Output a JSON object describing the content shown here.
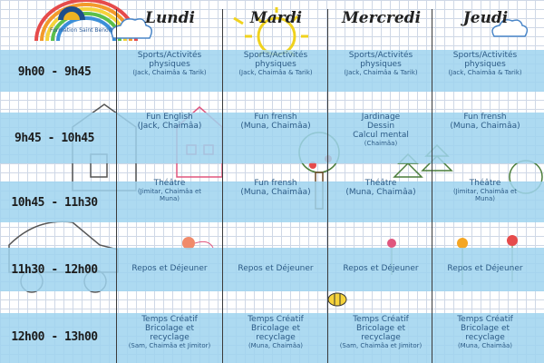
{
  "org": {
    "name": "Formation Saint Benoit"
  },
  "days": [
    "Lundi",
    "Mardi",
    "Mercredi",
    "Jeudi"
  ],
  "rows": [
    {
      "time": "9h00 - 9h45",
      "cells": [
        {
          "lines": [
            "Sports/Activités",
            "physiques"
          ],
          "small": [
            "(Jack, Chaimâa & Tarik)"
          ]
        },
        {
          "lines": [
            "Sports/Activités",
            "physiques"
          ],
          "small": [
            "(Jack, Chaimâa & Tarik)"
          ]
        },
        {
          "lines": [
            "Sports/Activités",
            "physiques"
          ],
          "small": [
            "(Jack, Chaimâa & Tarik)"
          ]
        },
        {
          "lines": [
            "Sports/Activités",
            "physiques"
          ],
          "small": [
            "(Jack, Chaimâa & Tarik)"
          ]
        }
      ]
    },
    {
      "time": "9h45 - 10h45",
      "cells": [
        {
          "lines": [
            "Fun English",
            "(Jack, Chaimâa)"
          ],
          "small": []
        },
        {
          "lines": [
            "Fun frensh",
            "(Muna, Chaimâa)"
          ],
          "small": []
        },
        {
          "lines": [
            "Jardinage",
            "Dessin",
            "Calcul mental"
          ],
          "small": [
            "(Chaimâa)"
          ]
        },
        {
          "lines": [
            "Fun frensh",
            "(Muna, Chaimâa)"
          ],
          "small": []
        }
      ]
    },
    {
      "time": "10h45 - 11h30",
      "cells": [
        {
          "lines": [
            "Théâtre"
          ],
          "small": [
            "(Jimitar, Chaimâa et",
            "Muna)"
          ]
        },
        {
          "lines": [
            "Fun frensh",
            "(Muna, Chaimâa)"
          ],
          "small": []
        },
        {
          "lines": [
            "Théâtre",
            "(Muna, Chaimâa)"
          ],
          "small": []
        },
        {
          "lines": [
            "Théâtre"
          ],
          "small": [
            "(Jimitar, Chaimâa et",
            "Muna)"
          ]
        }
      ]
    },
    {
      "time": "11h30 - 12h00",
      "cells": [
        {
          "lines": [
            "Repos et Déjeuner"
          ],
          "small": []
        },
        {
          "lines": [
            "Repos et Déjeuner"
          ],
          "small": []
        },
        {
          "lines": [
            "Repos et Déjeuner"
          ],
          "small": []
        },
        {
          "lines": [
            "Repos et Déjeuner"
          ],
          "small": []
        }
      ]
    },
    {
      "time": "12h00 - 13h00",
      "cells": [
        {
          "lines": [
            "Temps Créatif",
            "Bricolage et",
            "recyclage"
          ],
          "small": [
            "(Sam, Chaimâa et Jimitor)"
          ]
        },
        {
          "lines": [
            "Temps Créatif",
            "Bricolage et",
            "recyclage"
          ],
          "small": [
            "(Muna, Chaimâa)"
          ]
        },
        {
          "lines": [
            "Temps Créatif",
            "Bricolage et",
            "recyclage"
          ],
          "small": [
            "(Sam, Chaimâa et Jimitor)"
          ]
        },
        {
          "lines": [
            "Temps Créatif",
            "Bricolage et",
            "recyclage"
          ],
          "small": [
            "(Muna, Chaimâa)"
          ]
        }
      ]
    }
  ]
}
